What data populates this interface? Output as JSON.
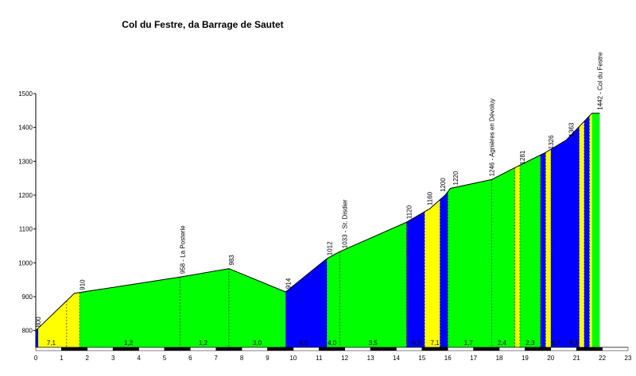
{
  "chart_data": {
    "type": "area",
    "title": "Col du Festre, da Barrage de Sautet",
    "xlabel": "",
    "ylabel": "",
    "xlim": [
      0,
      23
    ],
    "ylim": [
      750,
      1500
    ],
    "x_ticks": [
      0,
      1,
      2,
      3,
      4,
      5,
      6,
      7,
      8,
      9,
      10,
      11,
      12,
      13,
      14,
      15,
      16,
      17,
      18,
      19,
      20,
      21,
      22,
      23
    ],
    "y_ticks": [
      800,
      900,
      1000,
      1100,
      1200,
      1300,
      1400,
      1500
    ],
    "colors": {
      "blue": "#0000ff",
      "yellow": "#ffff00",
      "green": "#00ff00"
    },
    "profile": [
      {
        "x": 0.0,
        "y": 800
      },
      {
        "x": 1.5,
        "y": 910
      },
      {
        "x": 5.6,
        "y": 958
      },
      {
        "x": 7.5,
        "y": 983
      },
      {
        "x": 9.7,
        "y": 914
      },
      {
        "x": 11.3,
        "y": 1012
      },
      {
        "x": 11.8,
        "y": 1033
      },
      {
        "x": 14.4,
        "y": 1120
      },
      {
        "x": 15.3,
        "y": 1160
      },
      {
        "x": 15.9,
        "y": 1200
      },
      {
        "x": 16.1,
        "y": 1220
      },
      {
        "x": 17.7,
        "y": 1246
      },
      {
        "x": 18.6,
        "y": 1281
      },
      {
        "x": 19.8,
        "y": 1326
      },
      {
        "x": 20.6,
        "y": 1363
      },
      {
        "x": 21.6,
        "y": 1442
      },
      {
        "x": 21.9,
        "y": 1442
      }
    ],
    "segments": [
      {
        "x0": 0.0,
        "x1": 0.1,
        "color": "blue"
      },
      {
        "x0": 0.1,
        "x1": 1.2,
        "color": "yellow"
      },
      {
        "x0": 1.2,
        "x1": 1.5,
        "color": "yellow"
      },
      {
        "x0": 1.5,
        "x1": 1.7,
        "color": "yellow"
      },
      {
        "x0": 1.7,
        "x1": 9.7,
        "color": "green"
      },
      {
        "x0": 9.7,
        "x1": 11.3,
        "color": "blue"
      },
      {
        "x0": 11.3,
        "x1": 14.4,
        "color": "green"
      },
      {
        "x0": 14.4,
        "x1": 15.1,
        "color": "blue"
      },
      {
        "x0": 15.1,
        "x1": 15.7,
        "color": "yellow"
      },
      {
        "x0": 15.7,
        "x1": 16.0,
        "color": "blue"
      },
      {
        "x0": 16.0,
        "x1": 18.6,
        "color": "green"
      },
      {
        "x0": 18.6,
        "x1": 18.8,
        "color": "yellow"
      },
      {
        "x0": 18.8,
        "x1": 19.6,
        "color": "green"
      },
      {
        "x0": 19.6,
        "x1": 19.8,
        "color": "blue"
      },
      {
        "x0": 19.8,
        "x1": 20.0,
        "color": "yellow"
      },
      {
        "x0": 20.0,
        "x1": 21.1,
        "color": "blue"
      },
      {
        "x0": 21.1,
        "x1": 21.3,
        "color": "yellow"
      },
      {
        "x0": 21.3,
        "x1": 21.5,
        "color": "blue"
      },
      {
        "x0": 21.5,
        "x1": 21.6,
        "color": "yellow"
      },
      {
        "x0": 21.6,
        "x1": 21.9,
        "color": "green"
      }
    ],
    "dashed_lines": [
      1.2,
      1.7,
      5.6,
      7.5,
      11.3,
      11.8,
      14.4,
      15.1,
      15.7,
      16.0,
      17.7,
      18.6,
      18.8,
      19.6,
      19.8,
      21.1,
      21.3,
      21.5
    ],
    "elevation_labels": [
      {
        "x": 0.1,
        "y": 800,
        "text": "800"
      },
      {
        "x": 1.8,
        "y": 910,
        "text": "910"
      },
      {
        "x": 5.7,
        "y": 958,
        "text": "958 - La Posterle"
      },
      {
        "x": 7.6,
        "y": 983,
        "text": "983"
      },
      {
        "x": 9.8,
        "y": 914,
        "text": "914"
      },
      {
        "x": 11.4,
        "y": 1012,
        "text": "1012"
      },
      {
        "x": 12.0,
        "y": 1033,
        "text": "1033 - St. Disdier"
      },
      {
        "x": 14.5,
        "y": 1120,
        "text": "1120"
      },
      {
        "x": 15.3,
        "y": 1160,
        "text": "1160"
      },
      {
        "x": 15.8,
        "y": 1200,
        "text": "1200"
      },
      {
        "x": 16.3,
        "y": 1220,
        "text": "1220"
      },
      {
        "x": 17.7,
        "y": 1246,
        "text": "1246 - Agnières en Dévoluy"
      },
      {
        "x": 18.9,
        "y": 1281,
        "text": "1281"
      },
      {
        "x": 20.0,
        "y": 1326,
        "text": "1326"
      },
      {
        "x": 20.8,
        "y": 1363,
        "text": "1363"
      },
      {
        "x": 21.9,
        "y": 1442,
        "text": "1442 - Col du Festre"
      }
    ],
    "gradient_labels": [
      {
        "x": 0.6,
        "text": "7,1"
      },
      {
        "x": 3.6,
        "text": "1,2"
      },
      {
        "x": 6.5,
        "text": "1,2"
      },
      {
        "x": 8.6,
        "text": "3,0"
      },
      {
        "x": 10.4,
        "text": "6,0"
      },
      {
        "x": 11.5,
        "text": "4,0"
      },
      {
        "x": 13.1,
        "text": "3,5"
      },
      {
        "x": 14.8,
        "text": "6,0"
      },
      {
        "x": 15.5,
        "text": "7,1"
      },
      {
        "x": 16.8,
        "text": "1,7"
      },
      {
        "x": 18.1,
        "text": "2,4"
      },
      {
        "x": 19.2,
        "text": "2,3"
      },
      {
        "x": 20.2,
        "text": "6,3"
      },
      {
        "x": 20.9,
        "text": "6,1"
      }
    ]
  }
}
